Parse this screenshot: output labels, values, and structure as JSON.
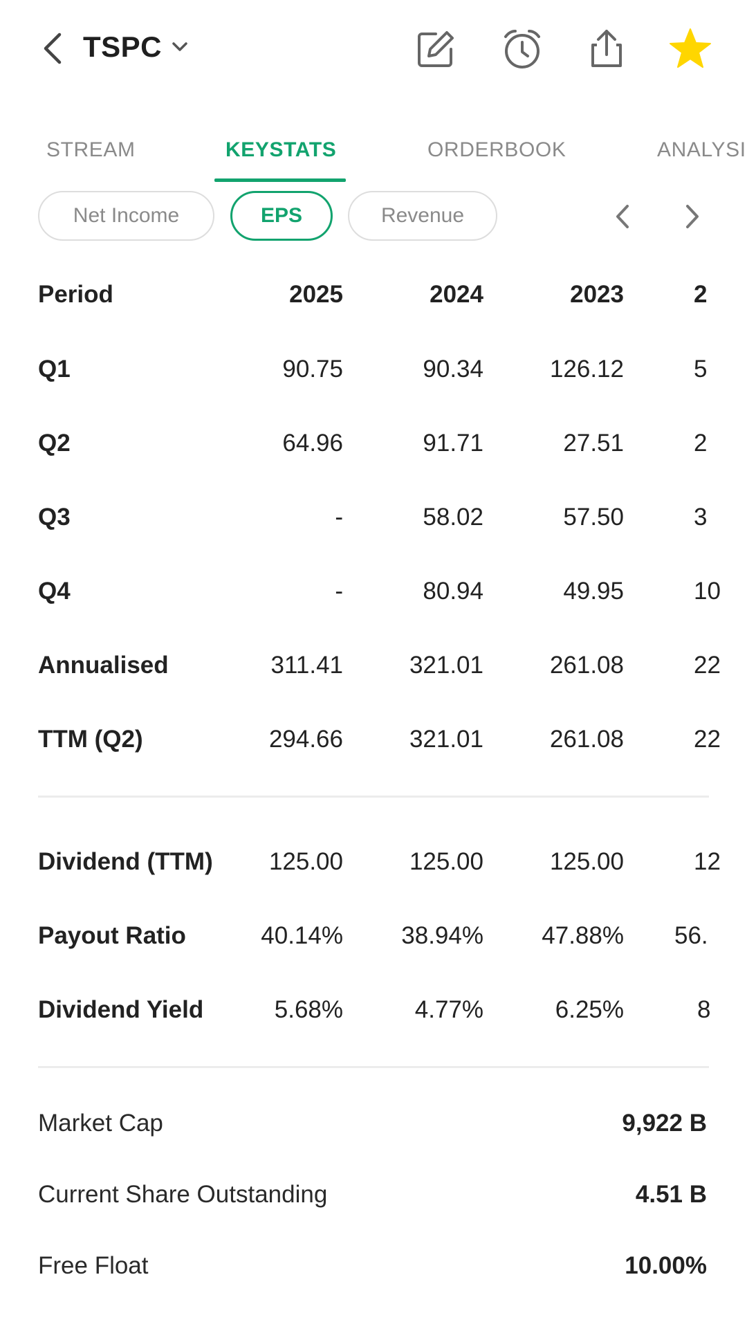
{
  "header": {
    "ticker": "TSPC",
    "icons": [
      "back-chevron-icon",
      "chevron-down-icon",
      "edit-icon",
      "alarm-clock-icon",
      "share-icon",
      "star-icon"
    ],
    "star_color": "#FFD600"
  },
  "tabs": [
    "STREAM",
    "KEYSTATS",
    "ORDERBOOK",
    "ANALYSI"
  ],
  "active_tab": "KEYSTATS",
  "chips": [
    "Net Income",
    "EPS",
    "Revenue"
  ],
  "active_chip": "EPS",
  "accent_color": "#12A36E",
  "table": {
    "header": {
      "label": "Period",
      "c1": "2025",
      "c2": "2024",
      "c3": "2023",
      "c4": "2"
    },
    "rows": [
      {
        "label": "Q1",
        "c1": "90.75",
        "c2": "90.34",
        "c3": "126.12",
        "c4": "5"
      },
      {
        "label": "Q2",
        "c1": "64.96",
        "c2": "91.71",
        "c3": "27.51",
        "c4": "2"
      },
      {
        "label": "Q3",
        "c1": "-",
        "c2": "58.02",
        "c3": "57.50",
        "c4": "3"
      },
      {
        "label": "Q4",
        "c1": "-",
        "c2": "80.94",
        "c3": "49.95",
        "c4": "10"
      },
      {
        "label": "Annualised",
        "c1": "311.41",
        "c2": "321.01",
        "c3": "261.08",
        "c4": "22"
      },
      {
        "label": "TTM (Q2)",
        "c1": "294.66",
        "c2": "321.01",
        "c3": "261.08",
        "c4": "22"
      }
    ],
    "dividend_rows": [
      {
        "label": "Dividend (TTM)",
        "c1": "125.00",
        "c2": "125.00",
        "c3": "125.00",
        "c4": "12"
      },
      {
        "label": "Payout Ratio",
        "c1": "40.14%",
        "c2": "38.94%",
        "c3": "47.88%",
        "c4": "56."
      },
      {
        "label": "Dividend Yield",
        "c1": "5.68%",
        "c2": "4.77%",
        "c3": "6.25%",
        "c4": "8"
      }
    ]
  },
  "stats": [
    {
      "label": "Market Cap",
      "value": "9,922 B"
    },
    {
      "label": "Current Share Outstanding",
      "value": "4.51 B"
    },
    {
      "label": "Free Float",
      "value": "10.00%"
    }
  ]
}
